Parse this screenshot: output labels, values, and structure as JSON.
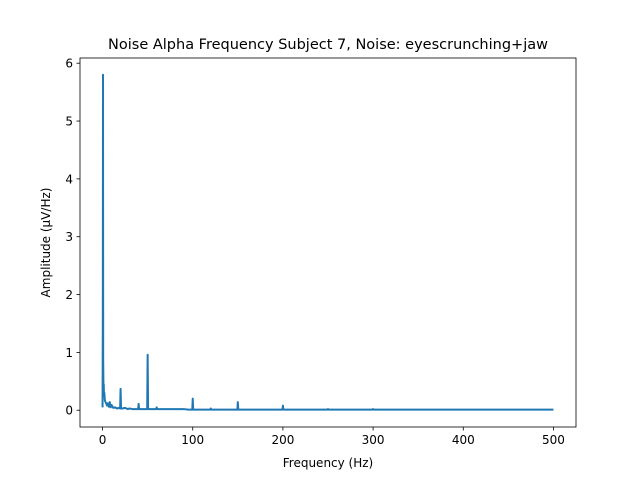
{
  "chart_data": {
    "type": "line",
    "title": "Noise Alpha Frequency Subject 7, Noise: eyescrunching+jaw",
    "xlabel": "Frequency (Hz)",
    "ylabel": "Amplitude (μV/Hz)",
    "xlim": [
      -25,
      525
    ],
    "ylim": [
      -0.29,
      6.09
    ],
    "xticks": [
      0,
      100,
      200,
      300,
      400,
      500
    ],
    "yticks": [
      0,
      1,
      2,
      3,
      4,
      5,
      6
    ],
    "xtick_labels": [
      "0",
      "100",
      "200",
      "300",
      "400",
      "500"
    ],
    "ytick_labels": [
      "0",
      "1",
      "2",
      "3",
      "4",
      "5",
      "6"
    ],
    "grid": false,
    "legend": "none",
    "series": [
      {
        "color": "#1f77b4",
        "x": [
          0,
          0.3,
          0.5,
          0.7,
          1,
          1.3,
          1.6,
          2,
          2.5,
          3,
          4,
          5,
          6,
          7,
          8,
          9,
          10,
          12,
          14,
          16,
          18,
          19.5,
          20,
          20.5,
          22,
          25,
          28,
          30,
          33,
          36,
          39.5,
          40,
          40.5,
          43,
          46,
          49.5,
          50,
          50.5,
          53,
          56,
          59.5,
          60,
          60.5,
          65,
          70,
          75,
          80,
          85,
          90,
          95,
          99.5,
          100,
          100.5,
          105,
          110,
          115,
          119.5,
          120,
          120.5,
          125,
          130,
          135,
          140,
          145,
          149.5,
          150,
          150.5,
          155,
          160,
          170,
          180,
          190,
          199.5,
          200,
          200.5,
          210,
          220,
          230,
          240,
          249.5,
          250,
          250.5,
          260,
          270,
          280,
          290,
          299.5,
          300,
          300.5,
          320,
          340,
          360,
          380,
          400,
          420,
          440,
          460,
          480,
          500
        ],
        "y": [
          0.05,
          1.65,
          5.8,
          0.9,
          0.4,
          0.45,
          0.25,
          0.3,
          0.18,
          0.15,
          0.12,
          0.08,
          0.12,
          0.06,
          0.14,
          0.05,
          0.09,
          0.04,
          0.05,
          0.03,
          0.04,
          0.03,
          0.37,
          0.03,
          0.03,
          0.04,
          0.02,
          0.03,
          0.02,
          0.02,
          0.02,
          0.11,
          0.02,
          0.02,
          0.02,
          0.02,
          0.96,
          0.02,
          0.02,
          0.02,
          0.02,
          0.05,
          0.02,
          0.02,
          0.02,
          0.02,
          0.02,
          0.02,
          0.02,
          0.01,
          0.01,
          0.2,
          0.01,
          0.01,
          0.01,
          0.01,
          0.01,
          0.03,
          0.01,
          0.01,
          0.01,
          0.01,
          0.01,
          0.01,
          0.01,
          0.14,
          0.01,
          0.01,
          0.01,
          0.01,
          0.01,
          0.01,
          0.01,
          0.08,
          0.01,
          0.01,
          0.01,
          0.01,
          0.01,
          0.01,
          0.02,
          0.01,
          0.01,
          0.01,
          0.01,
          0.01,
          0.01,
          0.02,
          0.01,
          0.01,
          0.01,
          0.01,
          0.01,
          0.01,
          0.01,
          0.01,
          0.01,
          0.01,
          0.01
        ]
      }
    ]
  }
}
